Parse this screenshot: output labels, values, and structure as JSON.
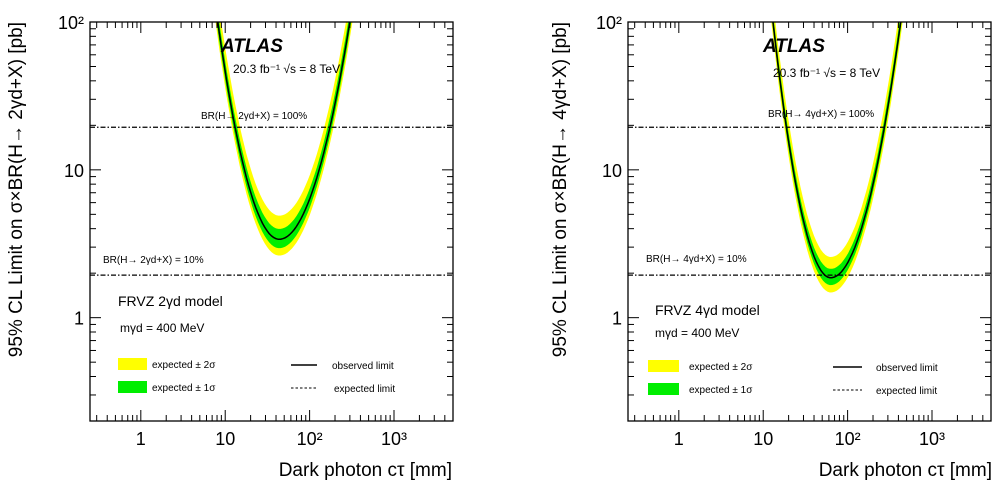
{
  "chart_data": [
    {
      "type": "line",
      "xscale": "log",
      "yscale": "log",
      "xlim": [
        0.25,
        5000
      ],
      "ylim": [
        0.2,
        100
      ],
      "xticks": [
        "1",
        "10",
        "10²",
        "10³"
      ],
      "yticks": [
        "1",
        "10",
        "10²"
      ],
      "xlabel": "Dark photon cτ [mm]",
      "ylabel": "95% CL Limit on σ×BR(H→ 2γd+X) [pb]",
      "title": "ATLAS",
      "subtitle": "20.3 fb⁻¹ √s = 8 TeV",
      "annotations": {
        "br100": {
          "text": "BR(H→ 2γd+X) = 100%",
          "y": 19.4
        },
        "br10": {
          "text": "BR(H→ 2γd+X) = 10%",
          "y": 1.94
        },
        "model": "FRVZ 2γd model",
        "mass": "mγd = 400 MeV"
      },
      "legend": {
        "placement": "bottom",
        "band2_label": "expected ± 2σ",
        "band1_label": "expected ± 1σ",
        "obs_label": "observed limit",
        "exp_label": "expected limit"
      },
      "curve": {
        "xmin_log": 1.64,
        "ymin_log": 0.53,
        "k_left": 0.66,
        "k_right": 0.5
      },
      "bands": {
        "s1_up": 0.07,
        "s1_dn": 0.06,
        "s2_up": 0.16,
        "s2_dn": 0.11
      },
      "x": [
        3,
        7,
        20,
        44,
        100,
        300,
        700,
        1500
      ],
      "observed": [
        100,
        19.5,
        4.6,
        3.4,
        4.5,
        10.3,
        33,
        100
      ],
      "expected": [
        100,
        19.5,
        4.6,
        3.4,
        4.5,
        10.3,
        33,
        100
      ]
    },
    {
      "type": "line",
      "xscale": "log",
      "yscale": "log",
      "xlim": [
        0.25,
        5000
      ],
      "ylim": [
        0.2,
        100
      ],
      "xticks": [
        "1",
        "10",
        "10²",
        "10³"
      ],
      "yticks": [
        "1",
        "10",
        "10²"
      ],
      "xlabel": "Dark photon cτ [mm]",
      "ylabel": "95% CL Limit on σ×BR(H→ 4γd+X) [pb]",
      "title": "ATLAS",
      "subtitle": "20.3 fb⁻¹ √s = 8 TeV",
      "annotations": {
        "br100": {
          "text": "BR(H→ 4γd+X) = 100%",
          "y": 19.4
        },
        "br10": {
          "text": "BR(H→ 4γd+X) = 10%",
          "y": 1.94
        },
        "model": "FRVZ 4γd model",
        "mass": "mγd = 400 MeV"
      },
      "legend": {
        "placement": "bottom",
        "band2_label": "expected ± 2σ",
        "band1_label": "expected ± 1σ",
        "obs_label": "observed limit",
        "exp_label": "expected limit"
      },
      "curve": {
        "xmin_log": 1.8,
        "ymin_log": 0.27,
        "k_left": 0.88,
        "k_right": 0.6
      },
      "bands": {
        "s1_up": 0.06,
        "s1_dn": 0.05,
        "s2_up": 0.14,
        "s2_dn": 0.1
      },
      "x": [
        4,
        8,
        25,
        63,
        150,
        400,
        700,
        1400
      ],
      "observed": [
        100,
        19.5,
        3.7,
        1.9,
        3.1,
        12.3,
        36,
        100
      ],
      "expected": [
        100,
        19.5,
        3.7,
        1.9,
        3.1,
        12.3,
        36,
        100
      ]
    }
  ]
}
